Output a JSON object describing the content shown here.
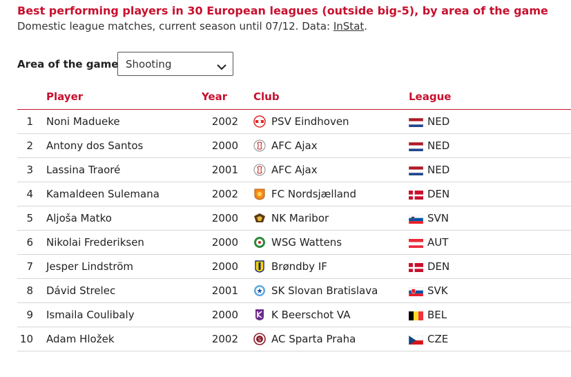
{
  "header": {
    "title": "Best performing players in 30 European leagues (outside big-5), by area of the game",
    "subtitle_prefix": "Domestic league matches, current season until 07/12. Data: ",
    "subtitle_link": "InStat",
    "subtitle_suffix": "."
  },
  "filter": {
    "label": "Area of the game",
    "selected": "Shooting"
  },
  "table": {
    "columns": [
      "Player",
      "Year",
      "Club",
      "League"
    ],
    "rows": [
      {
        "rank": "1",
        "player": "Noni Madueke",
        "year": "2002",
        "club": "PSV Eindhoven",
        "league": "NED",
        "flag": "ned",
        "logo": "psv-logo"
      },
      {
        "rank": "2",
        "player": "Antony dos Santos",
        "year": "2000",
        "club": "AFC Ajax",
        "league": "NED",
        "flag": "ned",
        "logo": "ajax-logo"
      },
      {
        "rank": "3",
        "player": "Lassina Traoré",
        "year": "2001",
        "club": "AFC Ajax",
        "league": "NED",
        "flag": "ned",
        "logo": "ajax-logo"
      },
      {
        "rank": "4",
        "player": "Kamaldeen Sulemana",
        "year": "2002",
        "club": "FC Nordsjælland",
        "league": "DEN",
        "flag": "den",
        "logo": "nordsjaelland-logo"
      },
      {
        "rank": "5",
        "player": "Aljoša Matko",
        "year": "2000",
        "club": "NK Maribor",
        "league": "SVN",
        "flag": "svn",
        "logo": "maribor-logo"
      },
      {
        "rank": "6",
        "player": "Nikolai Frederiksen",
        "year": "2000",
        "club": "WSG Wattens",
        "league": "AUT",
        "flag": "aut",
        "logo": "wattens-logo"
      },
      {
        "rank": "7",
        "player": "Jesper Lindström",
        "year": "2000",
        "club": "Brøndby IF",
        "league": "DEN",
        "flag": "den",
        "logo": "brondby-logo"
      },
      {
        "rank": "8",
        "player": "Dávid Strelec",
        "year": "2001",
        "club": "SK Slovan Bratislava",
        "league": "SVK",
        "flag": "svk",
        "logo": "slovan-logo"
      },
      {
        "rank": "9",
        "player": "Ismaila Coulibaly",
        "year": "2000",
        "club": "K Beerschot VA",
        "league": "BEL",
        "flag": "bel",
        "logo": "beerschot-logo"
      },
      {
        "rank": "10",
        "player": "Adam Hložek",
        "year": "2002",
        "club": "AC Sparta Praha",
        "league": "CZE",
        "flag": "cze",
        "logo": "sparta-logo"
      }
    ]
  },
  "colors": {
    "accent": "#c8102e",
    "row_border": "#d6d6d6"
  }
}
